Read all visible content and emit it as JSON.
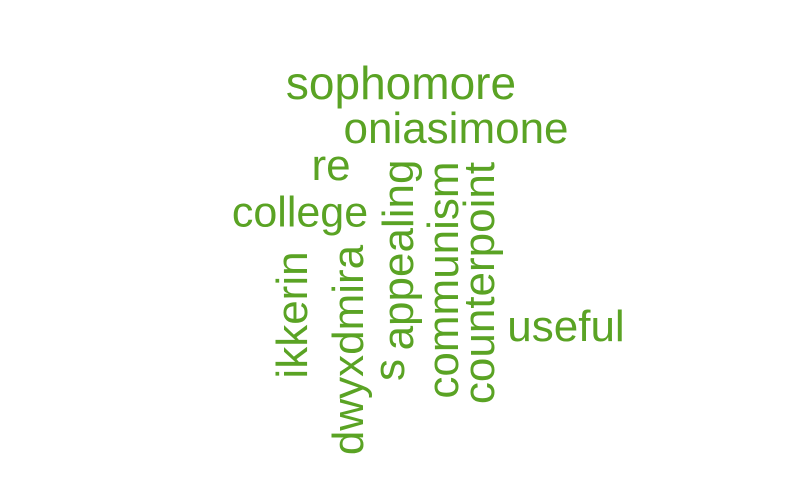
{
  "word_cloud": {
    "color": "#5aa324",
    "words": [
      "sophomore",
      "oniasimone",
      "re",
      "college",
      "ikkerin",
      "dwyxdmira",
      "s",
      "appealing",
      "communism",
      "counterpoint",
      "useful"
    ]
  }
}
